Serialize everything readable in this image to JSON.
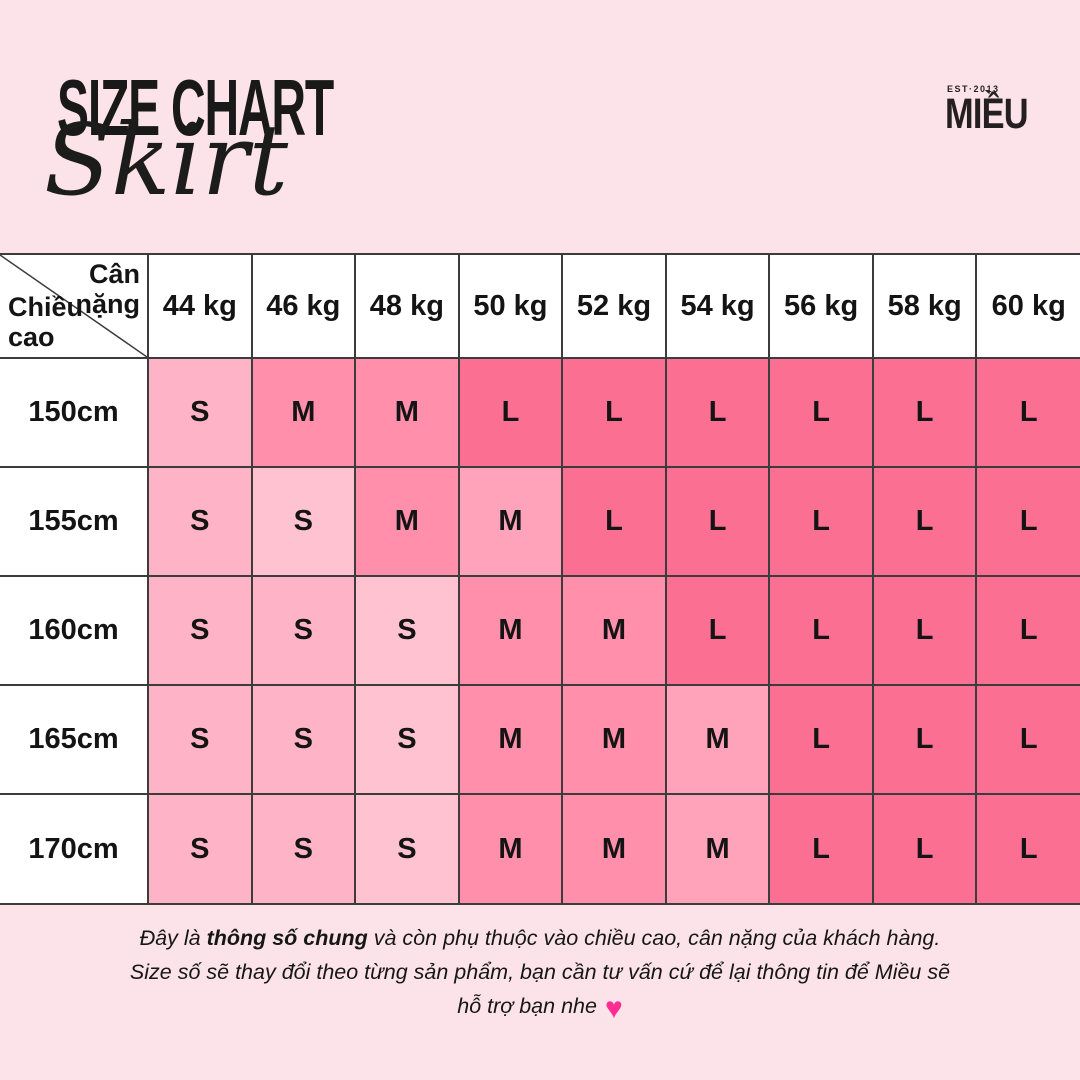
{
  "page": {
    "background": "#FBE3E9",
    "title": "SIZE CHART",
    "subtitle": "Skirt"
  },
  "logo": {
    "est_text": "EST·2013",
    "brand_name": "MIỀU"
  },
  "chart_data": {
    "type": "table",
    "title": "SIZE CHART",
    "subtitle": "Skirt",
    "corner_top_right_label": "Cân nặng",
    "corner_bottom_left_label": "Chiều cao",
    "columns": [
      "44 kg",
      "46 kg",
      "48 kg",
      "50 kg",
      "52 kg",
      "54 kg",
      "56 kg",
      "58 kg",
      "60 kg"
    ],
    "rows": [
      "150cm",
      "155cm",
      "160cm",
      "165cm",
      "170cm"
    ],
    "values": [
      [
        "S",
        "M",
        "M",
        "L",
        "L",
        "L",
        "L",
        "L",
        "L"
      ],
      [
        "S",
        "S",
        "M",
        "M",
        "L",
        "L",
        "L",
        "L",
        "L"
      ],
      [
        "S",
        "S",
        "S",
        "M",
        "M",
        "L",
        "L",
        "L",
        "L"
      ],
      [
        "S",
        "S",
        "S",
        "M",
        "M",
        "M",
        "L",
        "L",
        "L"
      ],
      [
        "S",
        "S",
        "S",
        "M",
        "M",
        "M",
        "L",
        "L",
        "L"
      ]
    ],
    "cell_colors": [
      [
        "S",
        "M",
        "M",
        "L",
        "L",
        "L",
        "L",
        "L",
        "L"
      ],
      [
        "S",
        "S2",
        "M",
        "M2",
        "L",
        "L",
        "L",
        "L",
        "L"
      ],
      [
        "S",
        "S",
        "S2",
        "M",
        "M",
        "L",
        "L",
        "L",
        "L"
      ],
      [
        "S",
        "S",
        "S2",
        "M",
        "M",
        "M2",
        "L",
        "L",
        "L"
      ],
      [
        "S",
        "S",
        "S2",
        "M",
        "M",
        "M2",
        "L",
        "L",
        "L"
      ]
    ],
    "palette": {
      "S": "#FFB3C6",
      "S2": "#FFC2D1",
      "M": "#FF8FAB",
      "M2": "#FFA3BB",
      "L": "#FB6F92"
    },
    "header_background": "#FFFFFF",
    "grid_line_color": "#3C3C3C"
  },
  "footer": {
    "line1_prefix": "Đây là ",
    "line1_bold": "thông số chung",
    "line1_suffix": " và còn phụ thuộc vào chiều cao, cân nặng của khách hàng.",
    "line2": "Size số sẽ thay đổi theo từng sản phẩm, bạn cần tư vấn cứ để lại thông tin để Miều sẽ",
    "line3": "hỗ trợ bạn nhe",
    "heart_icon": "♥",
    "heart_color": "#FF2D92"
  }
}
